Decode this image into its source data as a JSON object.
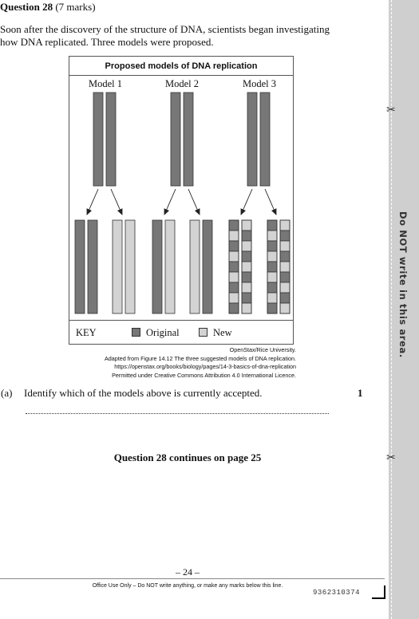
{
  "question": {
    "number_label": "Question 28",
    "marks_label": "(7 marks)"
  },
  "intro": "Soon after the discovery of the structure of DNA, scientists began investigating how DNA replicated. Three models were proposed.",
  "figure": {
    "title": "Proposed models of DNA replication",
    "models": [
      "Model 1",
      "Model 2",
      "Model 3"
    ],
    "key": {
      "label": "KEY",
      "original": "Original",
      "new": "New"
    },
    "colors": {
      "original": "#777777",
      "new": "#d3d3d3"
    }
  },
  "source_lines": [
    "OpenStax/Rice University.",
    "Adapted from Figure 14.12 The three suggested models of DNA replication.",
    "https://openstax.org/books/biology/pages/14-3-basics-of-dna-replication",
    "Permitted under Creative Commons Attribution 4.0 International Licence."
  ],
  "part_a": {
    "label": "(a)",
    "text": "Identify which of the models above is currently accepted.",
    "marks": "1"
  },
  "continues": "Question 28 continues on page 25",
  "page_number": "– 24 –",
  "office_use": "Office Use Only – Do NOT write anything, or make any marks below this line.",
  "barcode": "9362310374",
  "margin_text": "Do NOT write in this area."
}
